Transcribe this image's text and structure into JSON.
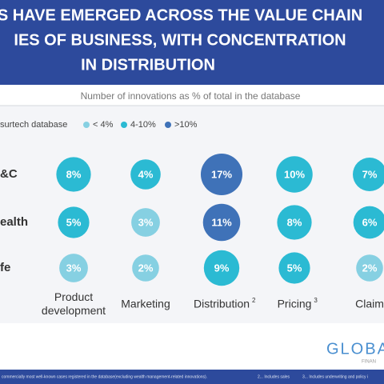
{
  "chart_data": {
    "type": "bubble-matrix",
    "title_lines": [
      "S HAVE EMERGED ACROSS THE VALUE CHAIN",
      "IES OF BUSINESS, WITH CONCENTRATION",
      "IN DISTRIBUTION"
    ],
    "subtitle": "Number of innovations as % of total in the database",
    "legend_title": "surtech database",
    "legend": [
      {
        "label": "< 4%",
        "color": "#86d0e2"
      },
      {
        "label": "4-10%",
        "color": "#2bbad3"
      },
      {
        "label": ">10%",
        "color": "#3f72b8"
      }
    ],
    "categories": [
      "Product development",
      "Marketing",
      "Distribution",
      "Pricing",
      "Claim"
    ],
    "category_notes": [
      null,
      null,
      "2",
      "3",
      null
    ],
    "series": [
      {
        "name": "&C",
        "values": [
          8,
          4,
          17,
          10,
          7
        ],
        "value_labels": [
          "8%",
          "4%",
          "17%",
          "10%",
          "7%"
        ],
        "colors": [
          "#2bbad3",
          "#2bbad3",
          "#3f72b8",
          "#2bbad3",
          "#2bbad3"
        ]
      },
      {
        "name": "ealth",
        "values": [
          5,
          3,
          11,
          8,
          6
        ],
        "value_labels": [
          "5%",
          "3%",
          "11%",
          "8%",
          "6%"
        ],
        "colors": [
          "#2bbad3",
          "#86d0e2",
          "#3f72b8",
          "#2bbad3",
          "#2bbad3"
        ]
      },
      {
        "name": "fe",
        "values": [
          3,
          2,
          9,
          5,
          2
        ],
        "value_labels": [
          "3%",
          "2%",
          "9%",
          "5%",
          "2%"
        ],
        "colors": [
          "#86d0e2",
          "#86d0e2",
          "#2bbad3",
          "#2bbad3",
          "#86d0e2"
        ]
      }
    ],
    "logo": "GLOBA",
    "logo_sub": "FINAN",
    "footnotes": [
      "commercially most well-known cases registered in the database(excluding wealth management-related innovations).",
      "2... Includes sales",
      "3... Includes underwriting and policy i"
    ]
  }
}
